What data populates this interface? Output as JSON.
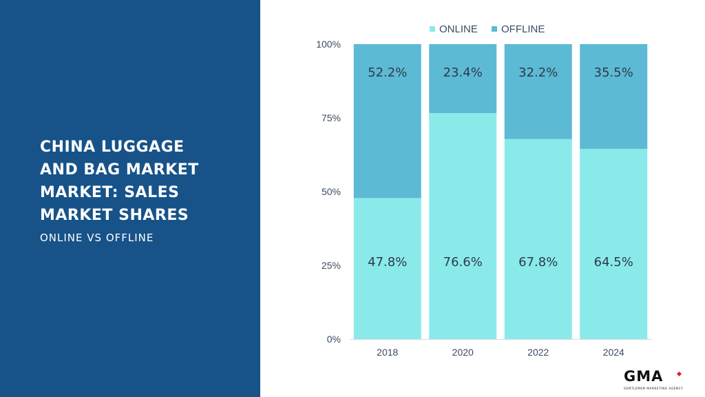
{
  "panel": {
    "title": "CHINA LUGGAGE\nAND BAG MARKET\nMARKET: SALES\nMARKET SHARES",
    "subtitle": "ONLINE VS OFFLINE",
    "background": "#175389"
  },
  "logo": {
    "text": "GMA",
    "tagline": "GENTLEMEN MARKETING AGENCY"
  },
  "chart_data": {
    "type": "bar",
    "stacked": true,
    "categories": [
      "2018",
      "2020",
      "2022",
      "2024"
    ],
    "series": [
      {
        "name": "ONLINE",
        "values": [
          47.8,
          76.6,
          67.8,
          64.5
        ],
        "labels": [
          "47.8%",
          "76.6%",
          "67.8%",
          "64.5%"
        ],
        "color": "#8aeaea"
      },
      {
        "name": "OFFLINE",
        "values": [
          52.2,
          23.4,
          32.2,
          35.5
        ],
        "labels": [
          "52.2%",
          "23.4%",
          "32.2%",
          "35.5%"
        ],
        "color": "#5dbad4"
      }
    ],
    "ylim": [
      0,
      100
    ],
    "yticks": [
      0,
      25,
      50,
      75,
      100
    ],
    "ytick_labels": [
      "0%",
      "25%",
      "50%",
      "75%",
      "100%"
    ],
    "legend_position": "top",
    "grid": false
  }
}
